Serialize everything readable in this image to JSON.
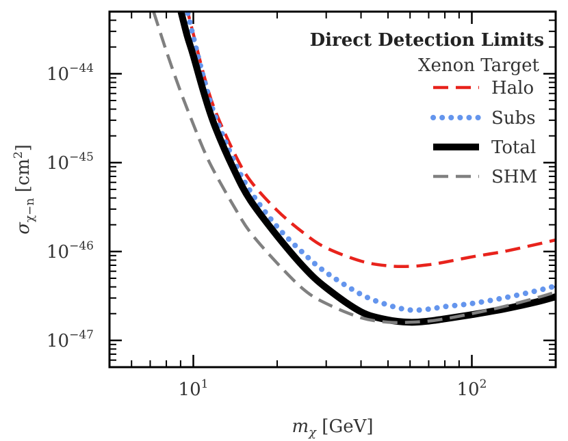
{
  "chart_data": {
    "type": "line",
    "title": "Direct Detection Limits",
    "subtitle": "Xenon Target",
    "xlabel": "m_χ [GeV]",
    "ylabel": "σ_χ−n [cm²]",
    "xscale": "log",
    "yscale": "log",
    "xlim": [
      5,
      200
    ],
    "ylim": [
      5e-48,
      5e-44
    ],
    "x_ticks": [
      {
        "value": 10,
        "base": "10",
        "exp": "1"
      },
      {
        "value": 100,
        "base": "10",
        "exp": "2"
      }
    ],
    "y_ticks": [
      {
        "value": 1e-44,
        "base": "10",
        "exp": "−44"
      },
      {
        "value": 1e-45,
        "base": "10",
        "exp": "−45"
      },
      {
        "value": 1e-46,
        "base": "10",
        "exp": "−46"
      },
      {
        "value": 1e-47,
        "base": "10",
        "exp": "−47"
      }
    ],
    "legend_position": "top-right",
    "series": [
      {
        "name": "Halo",
        "color": "#e8231c",
        "style": "dashed",
        "width": "medium",
        "points": [
          [
            9.4,
            6e-44
          ],
          [
            10,
            2.8e-44
          ],
          [
            11,
            8.8e-45
          ],
          [
            12,
            3.8e-45
          ],
          [
            14,
            1.3e-45
          ],
          [
            16,
            6.3e-46
          ],
          [
            20,
            2.9e-46
          ],
          [
            25,
            1.6e-46
          ],
          [
            30,
            1.1e-46
          ],
          [
            40,
            7.8e-47
          ],
          [
            50,
            6.9e-47
          ],
          [
            60,
            6.8e-47
          ],
          [
            70,
            7.1e-47
          ],
          [
            80,
            7.6e-47
          ],
          [
            100,
            8.7e-47
          ],
          [
            130,
            1e-46
          ],
          [
            170,
            1.2e-46
          ],
          [
            200,
            1.35e-46
          ]
        ]
      },
      {
        "name": "Subs",
        "color": "#6495ed",
        "style": "dotted",
        "width": "thick",
        "points": [
          [
            9.4,
            6e-44
          ],
          [
            10,
            2.6e-44
          ],
          [
            11,
            8e-45
          ],
          [
            12,
            3.3e-45
          ],
          [
            14,
            1.05e-45
          ],
          [
            16,
            4.8e-46
          ],
          [
            20,
            1.9e-46
          ],
          [
            25,
            9.4e-47
          ],
          [
            30,
            5.8e-47
          ],
          [
            40,
            3.3e-47
          ],
          [
            50,
            2.5e-47
          ],
          [
            60,
            2.2e-47
          ],
          [
            70,
            2.25e-47
          ],
          [
            80,
            2.4e-47
          ],
          [
            100,
            2.6e-47
          ],
          [
            130,
            3e-47
          ],
          [
            170,
            3.6e-47
          ],
          [
            200,
            4.1e-47
          ]
        ]
      },
      {
        "name": "Total",
        "color": "#000000",
        "style": "solid",
        "width": "heavy",
        "points": [
          [
            8.9,
            6e-44
          ],
          [
            9.5,
            2.7e-44
          ],
          [
            10,
            1.6e-44
          ],
          [
            11,
            5.6e-45
          ],
          [
            12,
            2.5e-45
          ],
          [
            14,
            8.3e-46
          ],
          [
            16,
            3.8e-46
          ],
          [
            20,
            1.5e-46
          ],
          [
            25,
            6.6e-47
          ],
          [
            30,
            3.9e-47
          ],
          [
            40,
            2.1e-47
          ],
          [
            50,
            1.7e-47
          ],
          [
            60,
            1.6e-47
          ],
          [
            70,
            1.65e-47
          ],
          [
            80,
            1.75e-47
          ],
          [
            100,
            1.95e-47
          ],
          [
            130,
            2.25e-47
          ],
          [
            170,
            2.7e-47
          ],
          [
            200,
            3.1e-47
          ]
        ]
      },
      {
        "name": "SHM",
        "color": "#808080",
        "style": "dashed",
        "width": "medium",
        "points": [
          [
            7.2,
            5e-44
          ],
          [
            8,
            1.8e-44
          ],
          [
            9,
            6.3e-45
          ],
          [
            10,
            2.7e-45
          ],
          [
            11,
            1.3e-45
          ],
          [
            12,
            7.5e-46
          ],
          [
            14,
            3.2e-46
          ],
          [
            16,
            1.65e-46
          ],
          [
            20,
            7.4e-47
          ],
          [
            25,
            3.7e-47
          ],
          [
            30,
            2.6e-47
          ],
          [
            40,
            1.8e-47
          ],
          [
            50,
            1.6e-47
          ],
          [
            60,
            1.6e-47
          ],
          [
            70,
            1.65e-47
          ],
          [
            80,
            1.75e-47
          ],
          [
            100,
            2e-47
          ],
          [
            130,
            2.4e-47
          ],
          [
            170,
            3e-47
          ],
          [
            200,
            3.5e-47
          ]
        ]
      }
    ]
  }
}
